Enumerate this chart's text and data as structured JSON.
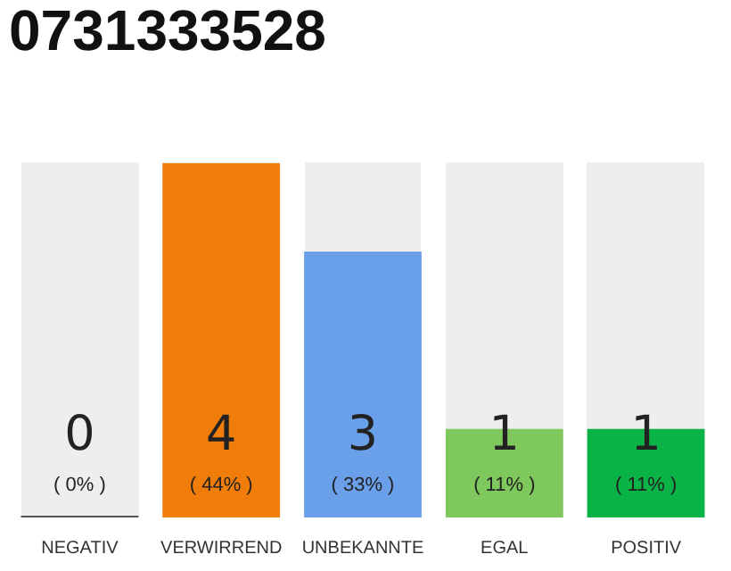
{
  "chart_data": {
    "type": "bar",
    "title": "0731333528",
    "categories": [
      "NEGATIV",
      "VERWIRREND",
      "UNBEKANNTE",
      "EGAL",
      "POSITIV"
    ],
    "values": [
      0,
      4,
      3,
      1,
      1
    ],
    "colors": [
      "#555555",
      "#f07d0a",
      "#6a9fea",
      "#7ec85d",
      "#0ab346"
    ],
    "value_labels": [
      "0",
      "4",
      "3",
      "1",
      "1"
    ],
    "annotations": [
      "( 0% )",
      "( 44% )",
      "( 33% )",
      "( 11% )",
      "( 11% )"
    ],
    "grid": false,
    "legend": false
  }
}
